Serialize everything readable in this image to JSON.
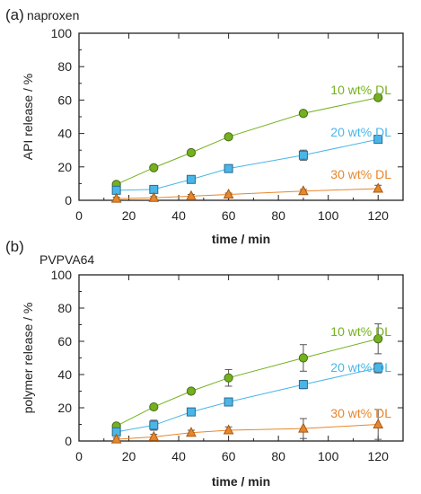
{
  "chart_data": [
    {
      "type": "line",
      "panel_label": "(a)",
      "title": "naproxen",
      "xlabel": "time / min",
      "ylabel": "API release / %",
      "xlim": [
        0,
        130
      ],
      "ylim": [
        0,
        100
      ],
      "xticks": [
        0,
        20,
        40,
        60,
        80,
        100,
        120
      ],
      "yticks": [
        0,
        20,
        40,
        60,
        80,
        100
      ],
      "x": [
        15,
        30,
        45,
        60,
        90,
        120
      ],
      "series": [
        {
          "name": "10 wt% DL",
          "color": "#74b11e",
          "marker": "circle",
          "values": [
            9.5,
            19.5,
            28.5,
            38,
            52,
            61.5
          ],
          "errors": [
            1.5,
            1.2,
            1.5,
            1.5,
            1.5,
            1.5
          ]
        },
        {
          "name": "20 wt% DL",
          "color": "#4ab6e8",
          "marker": "square",
          "values": [
            6,
            6.5,
            12.5,
            19,
            27,
            36.5
          ],
          "errors": [
            1.5,
            2,
            1.5,
            1.5,
            3,
            2
          ]
        },
        {
          "name": "30 wt% DL",
          "color": "#e8862b",
          "marker": "triangle",
          "values": [
            1,
            1.5,
            2.5,
            3.5,
            5.5,
            7
          ],
          "errors": [
            0.8,
            0.8,
            1,
            0.8,
            1,
            2
          ]
        }
      ]
    },
    {
      "type": "line",
      "panel_label": "(b)",
      "title": "PVPVA64",
      "xlabel": "time / min",
      "ylabel": "polymer release / %",
      "xlim": [
        0,
        130
      ],
      "ylim": [
        0,
        100
      ],
      "xticks": [
        0,
        20,
        40,
        60,
        80,
        100,
        120
      ],
      "yticks": [
        0,
        20,
        40,
        60,
        80,
        100
      ],
      "x": [
        15,
        30,
        45,
        60,
        90,
        120
      ],
      "series": [
        {
          "name": "10 wt% DL",
          "color": "#74b11e",
          "marker": "circle",
          "values": [
            9,
            20.5,
            30,
            38,
            50,
            61.5
          ],
          "errors": [
            1.5,
            1.5,
            1.5,
            5,
            8,
            9
          ]
        },
        {
          "name": "20 wt% DL",
          "color": "#4ab6e8",
          "marker": "square",
          "values": [
            5.5,
            9.5,
            17.5,
            23.5,
            34,
            44
          ],
          "errors": [
            2,
            3,
            1.5,
            1.5,
            2.5,
            3
          ]
        },
        {
          "name": "30 wt% DL",
          "color": "#e8862b",
          "marker": "triangle",
          "values": [
            1,
            2.5,
            5,
            6.5,
            7.5,
            10
          ],
          "errors": [
            1,
            1.5,
            1.5,
            2,
            6,
            9
          ]
        }
      ]
    }
  ]
}
